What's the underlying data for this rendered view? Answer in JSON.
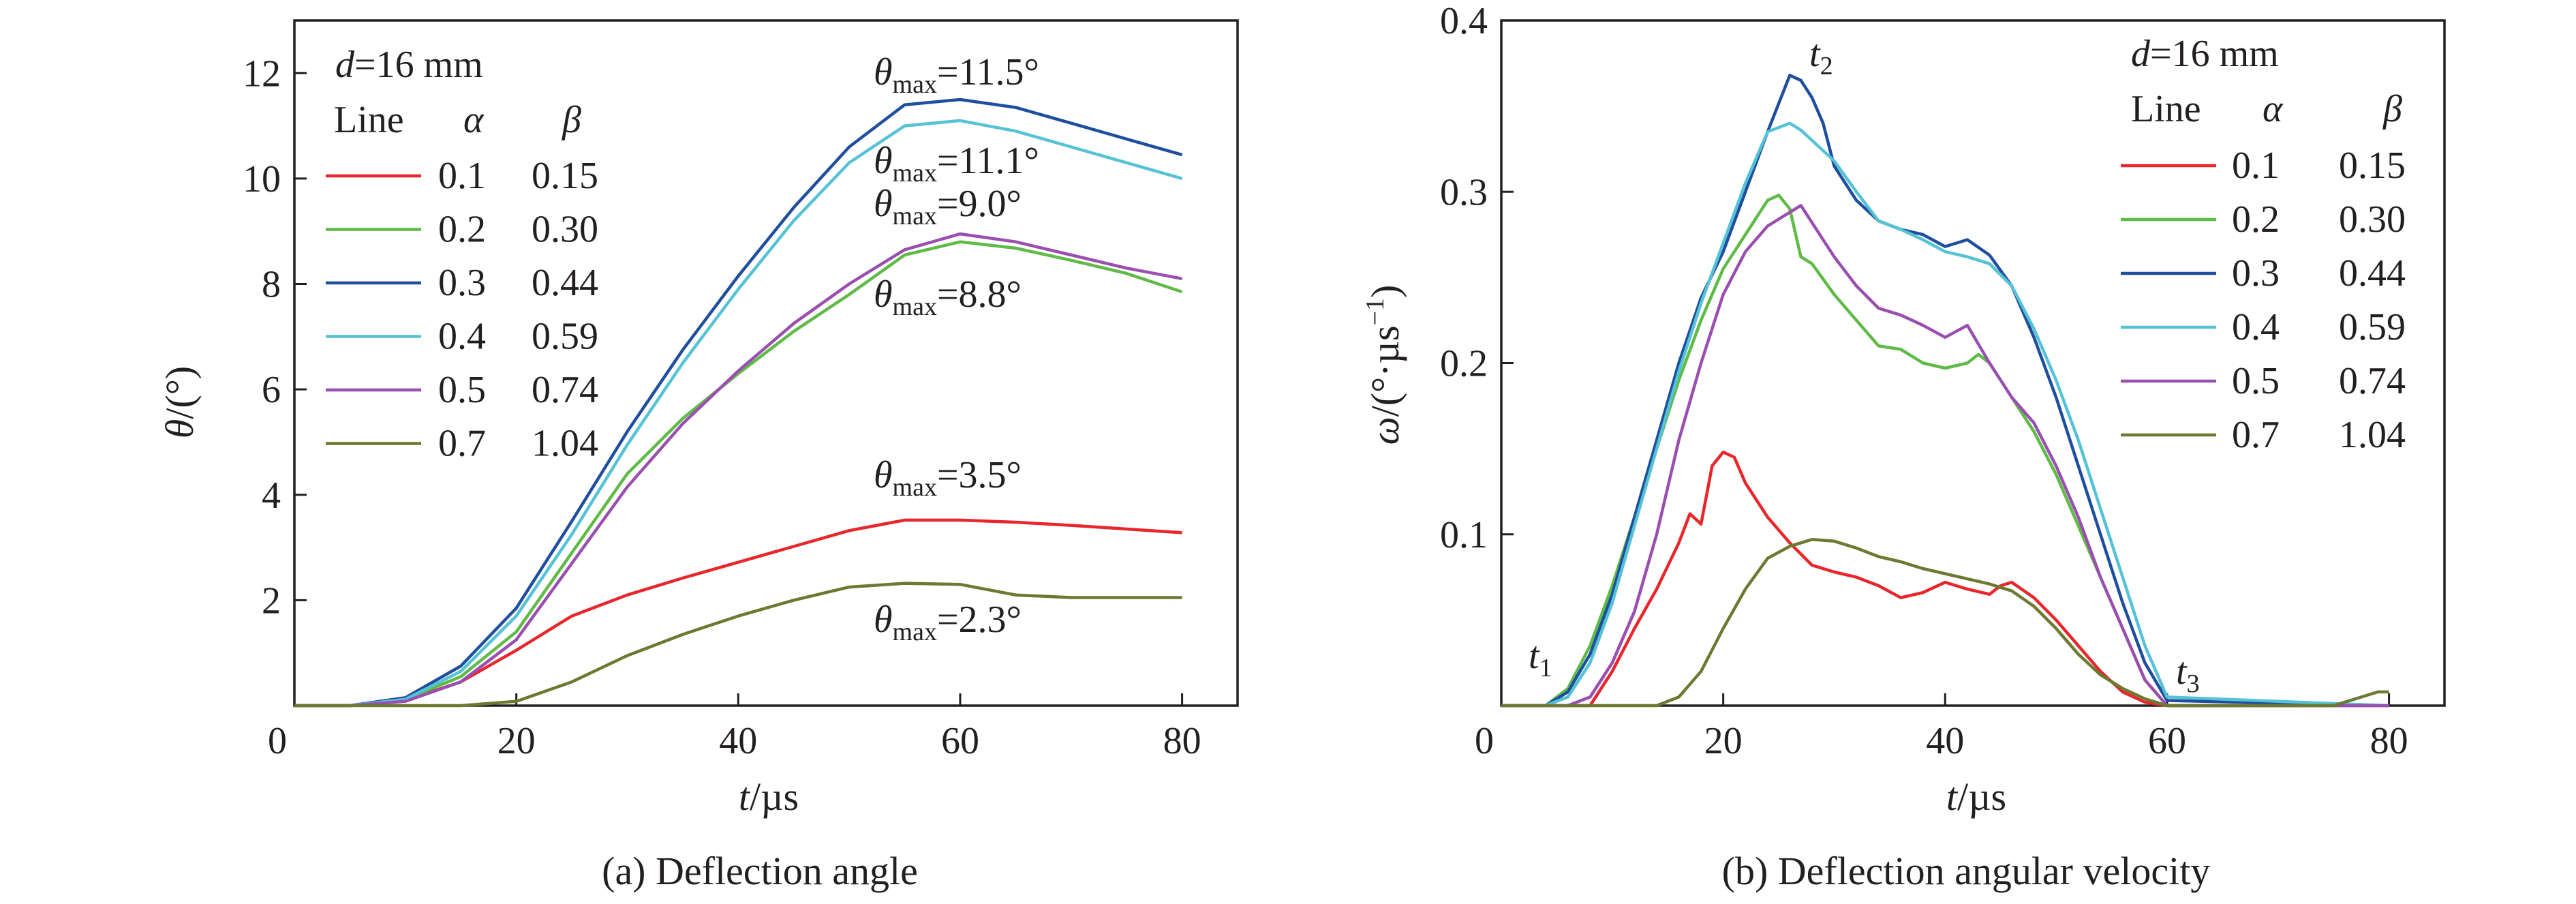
{
  "chart_data": [
    {
      "type": "line",
      "caption": "(a) Deflection angle",
      "xlabel_var": "t",
      "xlabel_unit": "/µs",
      "ylabel_var": "θ",
      "ylabel_unit": "/(°)",
      "xlim": [
        0,
        85
      ],
      "ylim": [
        0,
        13
      ],
      "xticks": [
        0,
        20,
        40,
        60,
        80
      ],
      "yticks": [
        2,
        4,
        6,
        8,
        10,
        12
      ],
      "legend": {
        "placement": "top-left",
        "d_var": "d",
        "d_value": "=16 mm",
        "col_line": "Line",
        "col_alpha": "α",
        "col_beta": "β"
      },
      "series": [
        {
          "alpha": "0.1",
          "beta": "0.15",
          "color": "#e8262c",
          "x": [
            0,
            5,
            10,
            15,
            20,
            25,
            30,
            35,
            40,
            45,
            50,
            55,
            60,
            65,
            70,
            75,
            80
          ],
          "values": [
            0,
            0,
            0.1,
            0.45,
            1.05,
            1.7,
            2.1,
            2.42,
            2.72,
            3.02,
            3.32,
            3.52,
            3.52,
            3.48,
            3.42,
            3.35,
            3.28
          ]
        },
        {
          "alpha": "0.2",
          "beta": "0.30",
          "color": "#5fba46",
          "x": [
            0,
            5,
            10,
            15,
            20,
            25,
            30,
            35,
            40,
            45,
            50,
            55,
            60,
            65,
            70,
            75,
            80
          ],
          "values": [
            0,
            0,
            0.12,
            0.55,
            1.4,
            2.9,
            4.4,
            5.45,
            6.3,
            7.1,
            7.8,
            8.55,
            8.8,
            8.68,
            8.45,
            8.2,
            7.85
          ]
        },
        {
          "alpha": "0.3",
          "beta": "0.44",
          "color": "#1f4e9e",
          "x": [
            0,
            5,
            10,
            15,
            20,
            25,
            30,
            35,
            40,
            45,
            50,
            55,
            60,
            65,
            70,
            75,
            80
          ],
          "values": [
            0,
            0,
            0.15,
            0.75,
            1.85,
            3.5,
            5.2,
            6.75,
            8.15,
            9.45,
            10.6,
            11.4,
            11.5,
            11.35,
            11.05,
            10.75,
            10.45
          ]
        },
        {
          "alpha": "0.4",
          "beta": "0.59",
          "color": "#55c2d6",
          "x": [
            0,
            5,
            10,
            15,
            20,
            25,
            30,
            35,
            40,
            45,
            50,
            55,
            60,
            65,
            70,
            75,
            80
          ],
          "values": [
            0,
            0,
            0.12,
            0.65,
            1.7,
            3.25,
            4.95,
            6.5,
            7.9,
            9.2,
            10.3,
            11.0,
            11.1,
            10.9,
            10.6,
            10.3,
            10.0
          ]
        },
        {
          "alpha": "0.5",
          "beta": "0.74",
          "color": "#9a4fb0",
          "x": [
            0,
            5,
            10,
            15,
            20,
            25,
            30,
            35,
            40,
            45,
            50,
            55,
            60,
            65,
            70,
            75,
            80
          ],
          "values": [
            0,
            0,
            0.08,
            0.45,
            1.25,
            2.7,
            4.15,
            5.35,
            6.35,
            7.25,
            8.0,
            8.65,
            8.95,
            8.8,
            8.55,
            8.3,
            8.1
          ]
        },
        {
          "alpha": "0.7",
          "beta": "1.04",
          "color": "#6b7a30",
          "x": [
            0,
            5,
            10,
            15,
            20,
            25,
            30,
            35,
            40,
            45,
            50,
            55,
            60,
            65,
            70,
            75,
            80
          ],
          "values": [
            0,
            0,
            0,
            0,
            0.08,
            0.45,
            0.95,
            1.35,
            1.7,
            2.0,
            2.25,
            2.32,
            2.3,
            2.1,
            2.05,
            2.05,
            2.05
          ]
        }
      ],
      "annotations": [
        {
          "var": "θ",
          "sub": "max",
          "text": "=11.5°",
          "color": "#1f4e9e"
        },
        {
          "var": "θ",
          "sub": "max",
          "text": "=11.1°",
          "color": "#55c2d6"
        },
        {
          "var": "θ",
          "sub": "max",
          "text": "=9.0°",
          "color": "#9a4fb0"
        },
        {
          "var": "θ",
          "sub": "max",
          "text": "=8.8°",
          "color": "#5fba46"
        },
        {
          "var": "θ",
          "sub": "max",
          "text": "=3.5°",
          "color": "#e8262c"
        },
        {
          "var": "θ",
          "sub": "max",
          "text": "=2.3°",
          "color": "#6b7a30"
        }
      ]
    },
    {
      "type": "line",
      "caption": "(b) Deflection angular velocity",
      "xlabel_var": "t",
      "xlabel_unit": "/µs",
      "ylabel_var": "ω",
      "ylabel_unit": "/(°·µs",
      "ylabel_sup": "−1",
      "ylabel_close": ")",
      "xlim": [
        0,
        85
      ],
      "ylim": [
        0,
        0.4
      ],
      "xticks": [
        0,
        20,
        40,
        60,
        80
      ],
      "yticks": [
        0.1,
        0.2,
        0.3,
        0.4
      ],
      "legend": {
        "placement": "top-right",
        "d_var": "d",
        "d_value": "=16 mm",
        "col_line": "Line",
        "col_alpha": "α",
        "col_beta": "β"
      },
      "series": [
        {
          "alpha": "0.1",
          "beta": "0.15",
          "color": "#e8262c",
          "x": [
            0,
            4,
            8,
            10,
            12,
            14,
            16,
            17,
            18,
            19,
            20,
            21,
            22,
            24,
            26,
            28,
            30,
            32,
            34,
            36,
            38,
            40,
            42,
            44,
            45,
            46,
            48,
            50,
            52,
            54,
            56,
            58,
            60,
            80
          ],
          "values": [
            0,
            0,
            0,
            0.02,
            0.045,
            0.068,
            0.095,
            0.112,
            0.106,
            0.14,
            0.148,
            0.145,
            0.13,
            0.11,
            0.095,
            0.082,
            0.078,
            0.075,
            0.07,
            0.063,
            0.066,
            0.072,
            0.068,
            0.065,
            0.07,
            0.072,
            0.063,
            0.05,
            0.035,
            0.02,
            0.008,
            0.002,
            0,
            0
          ]
        },
        {
          "alpha": "0.2",
          "beta": "0.30",
          "color": "#5fba46",
          "x": [
            0,
            4,
            6,
            8,
            10,
            12,
            14,
            16,
            18,
            20,
            22,
            24,
            25,
            26,
            27,
            28,
            30,
            32,
            34,
            36,
            38,
            40,
            42,
            43,
            44,
            46,
            48,
            50,
            52,
            54,
            56,
            58,
            60,
            80
          ],
          "values": [
            0,
            0,
            0.01,
            0.035,
            0.07,
            0.11,
            0.15,
            0.19,
            0.225,
            0.255,
            0.275,
            0.295,
            0.298,
            0.29,
            0.262,
            0.258,
            0.24,
            0.225,
            0.21,
            0.208,
            0.2,
            0.197,
            0.2,
            0.205,
            0.2,
            0.18,
            0.16,
            0.135,
            0.105,
            0.075,
            0.045,
            0.015,
            0,
            0
          ]
        },
        {
          "alpha": "0.3",
          "beta": "0.44",
          "color": "#1f4e9e",
          "x": [
            0,
            4,
            6,
            8,
            10,
            12,
            14,
            16,
            18,
            20,
            22,
            24,
            26,
            27,
            28,
            29,
            30,
            32,
            34,
            36,
            38,
            40,
            42,
            44,
            46,
            48,
            50,
            52,
            54,
            56,
            58,
            60,
            80
          ],
          "values": [
            0,
            0,
            0.008,
            0.03,
            0.065,
            0.11,
            0.155,
            0.2,
            0.238,
            0.265,
            0.3,
            0.335,
            0.368,
            0.365,
            0.355,
            0.34,
            0.315,
            0.295,
            0.283,
            0.278,
            0.275,
            0.268,
            0.272,
            0.263,
            0.245,
            0.215,
            0.18,
            0.14,
            0.1,
            0.06,
            0.025,
            0.003,
            0
          ]
        },
        {
          "alpha": "0.4",
          "beta": "0.59",
          "color": "#55c2d6",
          "x": [
            0,
            4,
            6,
            8,
            10,
            12,
            14,
            16,
            18,
            20,
            22,
            24,
            26,
            27,
            28,
            30,
            32,
            34,
            36,
            38,
            40,
            42,
            44,
            46,
            48,
            50,
            52,
            54,
            56,
            58,
            60,
            80
          ],
          "values": [
            0,
            0,
            0.005,
            0.025,
            0.06,
            0.105,
            0.15,
            0.195,
            0.235,
            0.27,
            0.305,
            0.335,
            0.34,
            0.336,
            0.33,
            0.318,
            0.3,
            0.283,
            0.278,
            0.272,
            0.265,
            0.262,
            0.258,
            0.245,
            0.22,
            0.19,
            0.155,
            0.115,
            0.075,
            0.035,
            0.005,
            0
          ]
        },
        {
          "alpha": "0.5",
          "beta": "0.74",
          "color": "#9a4fb0",
          "x": [
            0,
            6,
            8,
            10,
            12,
            14,
            16,
            18,
            20,
            22,
            24,
            26,
            27,
            28,
            30,
            32,
            34,
            36,
            38,
            40,
            42,
            44,
            46,
            48,
            50,
            52,
            54,
            56,
            58,
            60,
            80
          ],
          "values": [
            0,
            0,
            0.005,
            0.025,
            0.055,
            0.1,
            0.155,
            0.2,
            0.24,
            0.265,
            0.28,
            0.288,
            0.292,
            0.282,
            0.262,
            0.245,
            0.232,
            0.228,
            0.222,
            0.215,
            0.222,
            0.2,
            0.18,
            0.165,
            0.14,
            0.11,
            0.075,
            0.045,
            0.015,
            0,
            0
          ]
        },
        {
          "alpha": "0.7",
          "beta": "1.04",
          "color": "#6b7a30",
          "x": [
            0,
            14,
            16,
            18,
            20,
            22,
            24,
            26,
            28,
            30,
            32,
            34,
            36,
            38,
            40,
            42,
            44,
            46,
            48,
            50,
            52,
            54,
            56,
            58,
            60,
            75,
            77,
            79,
            80
          ],
          "values": [
            0,
            0,
            0.005,
            0.02,
            0.045,
            0.068,
            0.086,
            0.093,
            0.097,
            0.096,
            0.092,
            0.087,
            0.084,
            0.08,
            0.077,
            0.074,
            0.071,
            0.067,
            0.058,
            0.045,
            0.03,
            0.018,
            0.01,
            0.004,
            0,
            0,
            0.004,
            0.008,
            0.008
          ]
        }
      ],
      "annotations": [
        {
          "var": "t",
          "sub": "1"
        },
        {
          "var": "t",
          "sub": "2"
        },
        {
          "var": "t",
          "sub": "3"
        }
      ]
    }
  ]
}
